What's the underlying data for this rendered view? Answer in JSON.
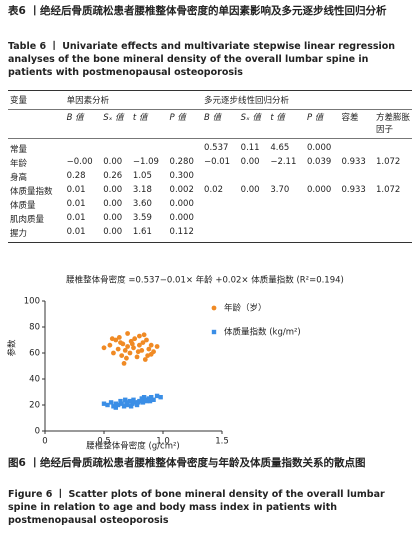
{
  "table_caption_zh": "表6 丨绝经后骨质疏松患者腰椎整体骨密度的单因素影响及多元逐步线性回归分析",
  "table_caption_en": "Table 6 丨 Univariate effects and multivariate stepwise linear regression analyses of the bone mineral density of the overall lumbar spine in patients with postmenopausal osteoporosis",
  "table": {
    "header_1": [
      "变量",
      "单因素分析",
      "多元逐步线性回归分析"
    ],
    "header_2": [
      "B 值",
      "Sₓ 值",
      "t 值",
      "P 值",
      "B 值",
      "Sₓ 值",
      "t 值",
      "P 值",
      "容差",
      "方差膨胀因子"
    ],
    "rows": [
      [
        "常量",
        null,
        null,
        null,
        null,
        "0.537",
        "0.11",
        "4.65",
        "0.000",
        null,
        null
      ],
      [
        "年龄",
        "−0.00",
        "0.00",
        "−1.09",
        "0.280",
        "−0.01",
        "0.00",
        "−2.11",
        "0.039",
        "0.933",
        "1.072"
      ],
      [
        "身高",
        "0.28",
        "0.26",
        "1.05",
        "0.300",
        null,
        null,
        null,
        null,
        null,
        null
      ],
      [
        "体质量指数",
        "0.01",
        "0.00",
        "3.18",
        "0.002",
        "0.02",
        "0.00",
        "3.70",
        "0.000",
        "0.933",
        "1.072"
      ],
      [
        "体质量",
        "0.01",
        "0.00",
        "3.60",
        "0.000",
        null,
        null,
        null,
        null,
        null,
        null
      ],
      [
        "肌肉质量",
        "0.01",
        "0.00",
        "3.59",
        "0.000",
        null,
        null,
        null,
        null,
        null,
        null
      ],
      [
        "握力",
        "0.01",
        "0.00",
        "1.61",
        "0.112",
        null,
        null,
        null,
        null,
        null,
        null
      ]
    ]
  },
  "chart_data": {
    "type": "scatter",
    "title": "腰椎整体骨密度 =0.537−0.01× 年龄 +0.02× 体质量指数 (R²=0.194)",
    "x_label": "腰椎整体骨密度 (g/cm²)",
    "y_label": "参数",
    "xlim": [
      0,
      1.5
    ],
    "xticks": [
      0,
      0.5,
      {
        "value": 1,
        "label": "1.0"
      },
      1.5
    ],
    "ylim": [
      0,
      100
    ],
    "yticks": [
      0,
      20,
      40,
      60,
      80,
      100
    ],
    "series": [
      {
        "name": "年龄（岁）",
        "color": "#f08a24",
        "marker": "circle",
        "x": [
          0.55,
          0.58,
          0.6,
          0.62,
          0.63,
          0.65,
          0.66,
          0.68,
          0.7,
          0.7,
          0.72,
          0.73,
          0.75,
          0.76,
          0.78,
          0.8,
          0.8,
          0.82,
          0.83,
          0.85,
          0.86,
          0.88,
          0.9,
          0.9,
          0.92,
          0.5,
          0.57,
          0.64,
          0.69,
          0.74,
          0.79,
          0.84,
          0.87,
          0.95,
          0.67
        ],
        "values": [
          66,
          60,
          70,
          63,
          72,
          58,
          67,
          62,
          75,
          65,
          60,
          69,
          64,
          71,
          57,
          66,
          73,
          62,
          68,
          55,
          70,
          63,
          66,
          59,
          61,
          64,
          71,
          68,
          56,
          67,
          61,
          74,
          58,
          65,
          52
        ]
      },
      {
        "name": "体质量指数 (kg/m²)",
        "color": "#3a8ee6",
        "marker": "square",
        "x": [
          0.5,
          0.53,
          0.56,
          0.58,
          0.6,
          0.62,
          0.64,
          0.65,
          0.67,
          0.69,
          0.7,
          0.72,
          0.74,
          0.75,
          0.77,
          0.78,
          0.8,
          0.82,
          0.83,
          0.85,
          0.86,
          0.88,
          0.9,
          0.92,
          0.95,
          0.98,
          0.6,
          0.68,
          0.73,
          0.79,
          0.84,
          0.89
        ],
        "values": [
          21,
          20,
          22,
          19,
          21,
          20,
          23,
          21,
          19,
          22,
          20,
          23,
          21,
          24,
          22,
          20,
          23,
          25,
          22,
          24,
          23,
          25,
          26,
          24,
          27,
          26,
          18,
          24,
          19,
          22,
          26,
          23
        ]
      }
    ]
  },
  "figure_caption_zh": "图6 丨绝经后骨质疏松患者腰椎整体骨密度与年龄及体质量指数关系的散点图",
  "figure_caption_en": "Figure 6 丨 Scatter plots of bone mineral density of the overall lumbar spine in relation to age and body mass index in patients with postmenopausal osteoporosis"
}
